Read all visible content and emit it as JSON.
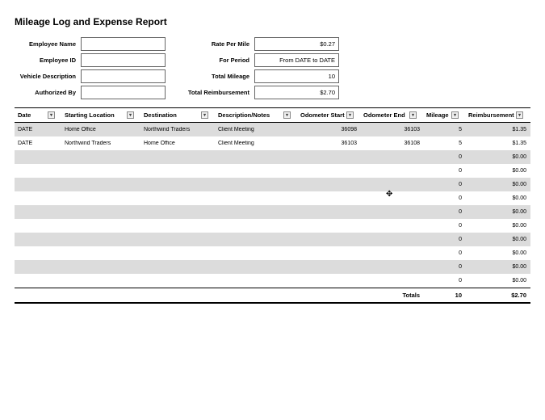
{
  "title": "Mileage Log and Expense Report",
  "form_left": {
    "employee_name": {
      "label": "Employee Name",
      "value": ""
    },
    "employee_id": {
      "label": "Employee ID",
      "value": ""
    },
    "vehicle_description": {
      "label": "Vehicle Description",
      "value": ""
    },
    "authorized_by": {
      "label": "Authorized By",
      "value": ""
    }
  },
  "form_right": {
    "rate_per_mile": {
      "label": "Rate Per Mile",
      "value": "$0.27"
    },
    "for_period": {
      "label": "For Period",
      "value": "From DATE to DATE"
    },
    "total_mileage": {
      "label": "Total Mileage",
      "value": "10"
    },
    "total_reimbursement": {
      "label": "Total Reimbursement",
      "value": "$2.70"
    }
  },
  "table": {
    "columns": [
      "Date",
      "Starting Location",
      "Destination",
      "Description/Notes",
      "Odometer Start",
      "Odometer End",
      "Mileage",
      "Reimbursement"
    ],
    "rows": [
      {
        "date": "DATE",
        "start": "Home Office",
        "dest": "Northwind Traders",
        "desc": "Client Meeting",
        "ostart": "36098",
        "oend": "36103",
        "mileage": "5",
        "reimb": "$1.35"
      },
      {
        "date": "DATE",
        "start": "Northwind Traders",
        "dest": "Home Office",
        "desc": "Client Meeting",
        "ostart": "36103",
        "oend": "36108",
        "mileage": "5",
        "reimb": "$1.35"
      },
      {
        "date": "",
        "start": "",
        "dest": "",
        "desc": "",
        "ostart": "",
        "oend": "",
        "mileage": "0",
        "reimb": "$0.00"
      },
      {
        "date": "",
        "start": "",
        "dest": "",
        "desc": "",
        "ostart": "",
        "oend": "",
        "mileage": "0",
        "reimb": "$0.00"
      },
      {
        "date": "",
        "start": "",
        "dest": "",
        "desc": "",
        "ostart": "",
        "oend": "",
        "mileage": "0",
        "reimb": "$0.00"
      },
      {
        "date": "",
        "start": "",
        "dest": "",
        "desc": "",
        "ostart": "",
        "oend": "",
        "mileage": "0",
        "reimb": "$0.00"
      },
      {
        "date": "",
        "start": "",
        "dest": "",
        "desc": "",
        "ostart": "",
        "oend": "",
        "mileage": "0",
        "reimb": "$0.00"
      },
      {
        "date": "",
        "start": "",
        "dest": "",
        "desc": "",
        "ostart": "",
        "oend": "",
        "mileage": "0",
        "reimb": "$0.00"
      },
      {
        "date": "",
        "start": "",
        "dest": "",
        "desc": "",
        "ostart": "",
        "oend": "",
        "mileage": "0",
        "reimb": "$0.00"
      },
      {
        "date": "",
        "start": "",
        "dest": "",
        "desc": "",
        "ostart": "",
        "oend": "",
        "mileage": "0",
        "reimb": "$0.00"
      },
      {
        "date": "",
        "start": "",
        "dest": "",
        "desc": "",
        "ostart": "",
        "oend": "",
        "mileage": "0",
        "reimb": "$0.00"
      },
      {
        "date": "",
        "start": "",
        "dest": "",
        "desc": "",
        "ostart": "",
        "oend": "",
        "mileage": "0",
        "reimb": "$0.00"
      }
    ],
    "totals": {
      "label": "Totals",
      "mileage": "10",
      "reimb": "$2.70"
    }
  }
}
